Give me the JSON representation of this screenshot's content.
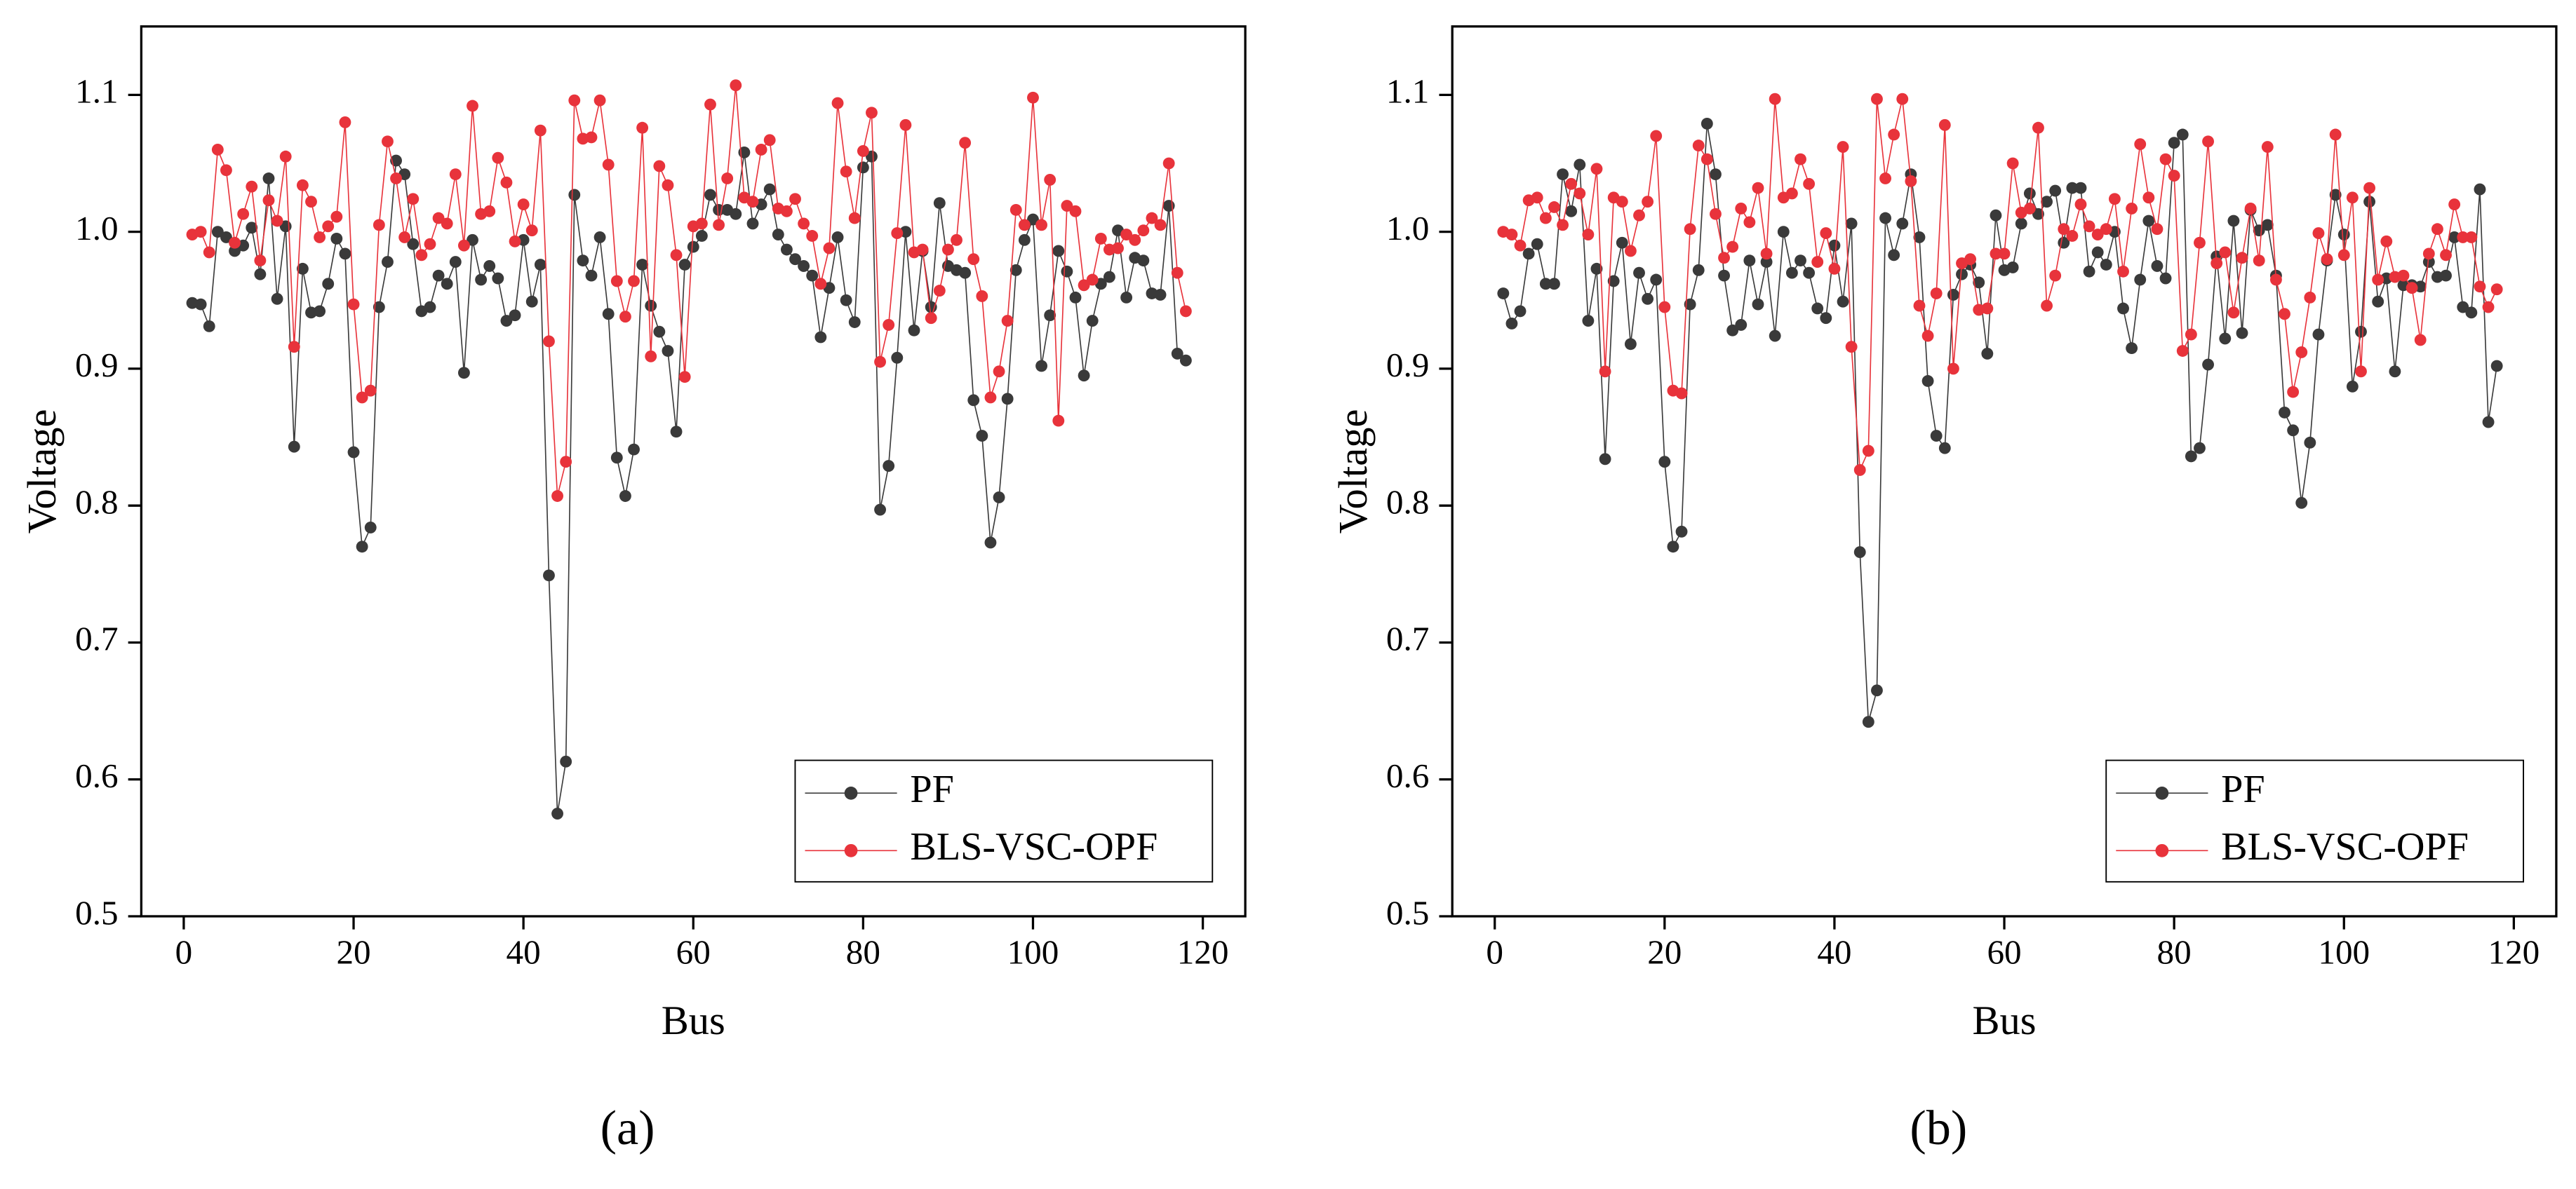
{
  "chart_data": [
    {
      "type": "line",
      "label": "(a)",
      "xlabel": "Bus",
      "ylabel": "Voltage",
      "xlim": [
        -5,
        125
      ],
      "xticks": [
        0,
        20,
        40,
        60,
        80,
        100,
        120
      ],
      "ylim": [
        0.5,
        1.15
      ],
      "yticks": [
        0.5,
        0.6,
        0.7,
        0.8,
        0.9,
        {
          "value": 1.0,
          "label": "1.0"
        },
        1.1
      ],
      "legend": "lower right",
      "x": [
        1,
        2,
        3,
        4,
        5,
        6,
        7,
        8,
        9,
        10,
        11,
        12,
        13,
        14,
        15,
        16,
        17,
        18,
        19,
        20,
        21,
        22,
        23,
        24,
        25,
        26,
        27,
        28,
        29,
        30,
        31,
        32,
        33,
        34,
        35,
        36,
        37,
        38,
        39,
        40,
        41,
        42,
        43,
        44,
        45,
        46,
        47,
        48,
        49,
        50,
        51,
        52,
        53,
        54,
        55,
        56,
        57,
        58,
        59,
        60,
        61,
        62,
        63,
        64,
        65,
        66,
        67,
        68,
        69,
        70,
        71,
        72,
        73,
        74,
        75,
        76,
        77,
        78,
        79,
        80,
        81,
        82,
        83,
        84,
        85,
        86,
        87,
        88,
        89,
        90,
        91,
        92,
        93,
        94,
        95,
        96,
        97,
        98,
        99,
        100,
        101,
        102,
        103,
        104,
        105,
        106,
        107,
        108,
        109,
        110,
        111,
        112,
        113,
        114,
        115,
        116,
        117,
        118
      ],
      "series": [
        {
          "name": "PF",
          "color": "#3a3a3a",
          "values": [
            0.948,
            0.947,
            0.931,
            1.0,
            0.996,
            0.986,
            0.99,
            1.003,
            0.969,
            1.039,
            0.951,
            1.004,
            0.843,
            0.973,
            0.941,
            0.942,
            0.962,
            0.995,
            0.984,
            0.839,
            0.77,
            0.784,
            0.945,
            0.978,
            1.052,
            1.042,
            0.991,
            0.942,
            0.945,
            0.968,
            0.962,
            0.978,
            0.897,
            0.994,
            0.965,
            0.975,
            0.966,
            0.935,
            0.939,
            0.994,
            0.949,
            0.976,
            0.749,
            0.575,
            0.613,
            1.027,
            0.979,
            0.968,
            0.996,
            0.94,
            0.835,
            0.807,
            0.841,
            0.976,
            0.946,
            0.927,
            0.913,
            0.854,
            0.976,
            0.989,
            0.997,
            1.027,
            1.016,
            1.016,
            1.013,
            1.058,
            1.006,
            1.02,
            1.031,
            0.998,
            0.987,
            0.98,
            0.975,
            0.968,
            0.923,
            0.959,
            0.996,
            0.95,
            0.934,
            1.047,
            1.055,
            0.797,
            0.829,
            0.908,
            1.0,
            0.928,
            0.986,
            0.945,
            1.021,
            0.975,
            0.972,
            0.97,
            0.877,
            0.851,
            0.773,
            0.806,
            0.878,
            0.972,
            0.994,
            1.009,
            0.902,
            0.939,
            0.986,
            0.971,
            0.952,
            0.895,
            0.935,
            0.962,
            0.967,
            1.001,
            0.952,
            0.981,
            0.979,
            0.955,
            0.954,
            1.019,
            0.911,
            0.906
          ]
        },
        {
          "name": "BLS-VSC-OPF",
          "color": "#e8333b",
          "values": [
            0.998,
            1.0,
            0.985,
            1.06,
            1.045,
            0.992,
            1.013,
            1.033,
            0.979,
            1.023,
            1.008,
            1.055,
            0.916,
            1.034,
            1.022,
            0.996,
            1.004,
            1.011,
            1.08,
            0.947,
            0.879,
            0.884,
            1.005,
            1.066,
            1.039,
            0.996,
            1.024,
            0.983,
            0.991,
            1.01,
            1.006,
            1.042,
            0.99,
            1.092,
            1.013,
            1.015,
            1.054,
            1.036,
            0.993,
            1.02,
            1.001,
            1.074,
            0.92,
            0.807,
            0.832,
            1.096,
            1.068,
            1.069,
            1.096,
            1.049,
            0.964,
            0.938,
            0.964,
            1.076,
            0.909,
            1.048,
            1.034,
            0.983,
            0.894,
            1.004,
            1.006,
            1.093,
            1.005,
            1.039,
            1.107,
            1.025,
            1.022,
            1.06,
            1.067,
            1.017,
            1.015,
            1.024,
            1.006,
            0.997,
            0.962,
            0.988,
            1.094,
            1.044,
            1.01,
            1.059,
            1.087,
            0.905,
            0.932,
            0.999,
            1.078,
            0.985,
            0.987,
            0.937,
            0.957,
            0.987,
            0.994,
            1.065,
            0.98,
            0.953,
            0.879,
            0.898,
            0.935,
            1.016,
            1.005,
            1.098,
            1.005,
            1.038,
            0.862,
            1.019,
            1.015,
            0.961,
            0.965,
            0.995,
            0.987,
            0.988,
            0.998,
            0.994,
            1.001,
            1.01,
            1.005,
            1.05,
            0.97,
            0.942
          ]
        }
      ]
    },
    {
      "type": "line",
      "label": "(b)",
      "xlabel": "Bus",
      "ylabel": "Voltage",
      "xlim": [
        -5,
        125
      ],
      "xticks": [
        0,
        20,
        40,
        60,
        80,
        100,
        120
      ],
      "ylim": [
        0.5,
        1.15
      ],
      "yticks": [
        0.5,
        0.6,
        0.7,
        0.8,
        0.9,
        {
          "value": 1.0,
          "label": "1.0"
        },
        1.1
      ],
      "legend": "lower right",
      "x": [
        1,
        2,
        3,
        4,
        5,
        6,
        7,
        8,
        9,
        10,
        11,
        12,
        13,
        14,
        15,
        16,
        17,
        18,
        19,
        20,
        21,
        22,
        23,
        24,
        25,
        26,
        27,
        28,
        29,
        30,
        31,
        32,
        33,
        34,
        35,
        36,
        37,
        38,
        39,
        40,
        41,
        42,
        43,
        44,
        45,
        46,
        47,
        48,
        49,
        50,
        51,
        52,
        53,
        54,
        55,
        56,
        57,
        58,
        59,
        60,
        61,
        62,
        63,
        64,
        65,
        66,
        67,
        68,
        69,
        70,
        71,
        72,
        73,
        74,
        75,
        76,
        77,
        78,
        79,
        80,
        81,
        82,
        83,
        84,
        85,
        86,
        87,
        88,
        89,
        90,
        91,
        92,
        93,
        94,
        95,
        96,
        97,
        98,
        99,
        100,
        101,
        102,
        103,
        104,
        105,
        106,
        107,
        108,
        109,
        110,
        111,
        112,
        113,
        114,
        115,
        116,
        117,
        118
      ],
      "series": [
        {
          "name": "PF",
          "color": "#3a3a3a",
          "values": [
            0.955,
            0.933,
            0.942,
            0.984,
            0.991,
            0.962,
            0.962,
            1.042,
            1.015,
            1.049,
            0.935,
            0.973,
            0.834,
            0.964,
            0.992,
            0.918,
            0.97,
            0.951,
            0.965,
            0.832,
            0.77,
            0.781,
            0.947,
            0.972,
            1.079,
            1.042,
            0.968,
            0.928,
            0.932,
            0.979,
            0.947,
            0.978,
            0.924,
            1.0,
            0.97,
            0.979,
            0.97,
            0.944,
            0.937,
            0.99,
            0.949,
            1.006,
            0.766,
            0.642,
            0.665,
            1.01,
            0.983,
            1.006,
            1.042,
            0.996,
            0.891,
            0.851,
            0.842,
            0.954,
            0.969,
            0.976,
            0.963,
            0.911,
            1.012,
            0.972,
            0.974,
            1.006,
            1.028,
            1.013,
            1.022,
            1.03,
            0.992,
            1.032,
            1.032,
            0.971,
            0.985,
            0.976,
            1.0,
            0.944,
            0.915,
            0.965,
            1.008,
            0.975,
            0.966,
            1.065,
            1.071,
            0.836,
            0.842,
            0.903,
            0.982,
            0.922,
            1.008,
            0.926,
            1.016,
            1.001,
            1.005,
            0.968,
            0.868,
            0.855,
            0.802,
            0.846,
            0.925,
            0.979,
            1.027,
            0.998,
            0.887,
            0.927,
            1.022,
            0.949,
            0.966,
            0.898,
            0.961,
            0.961,
            0.96,
            0.978,
            0.967,
            0.968,
            0.996,
            0.945,
            0.941,
            1.031,
            0.861,
            0.902
          ]
        },
        {
          "name": "BLS-VSC-OPF",
          "color": "#e8333b",
          "values": [
            1.0,
            0.998,
            0.99,
            1.023,
            1.025,
            1.01,
            1.018,
            1.005,
            1.035,
            1.028,
            0.998,
            1.046,
            0.898,
            1.025,
            1.022,
            0.986,
            1.012,
            1.022,
            1.07,
            0.945,
            0.884,
            0.882,
            1.002,
            1.063,
            1.053,
            1.013,
            0.981,
            0.989,
            1.017,
            1.007,
            1.032,
            0.984,
            1.097,
            1.025,
            1.028,
            1.053,
            1.035,
            0.978,
            0.999,
            0.973,
            1.062,
            0.916,
            0.826,
            0.84,
            1.097,
            1.039,
            1.071,
            1.097,
            1.037,
            0.946,
            0.924,
            0.955,
            1.078,
            0.9,
            0.977,
            0.98,
            0.943,
            0.944,
            0.984,
            0.984,
            1.05,
            1.014,
            1.017,
            1.076,
            0.946,
            0.968,
            1.002,
            0.997,
            1.02,
            1.004,
            0.998,
            1.002,
            1.024,
            0.971,
            1.017,
            1.064,
            1.025,
            1.002,
            1.053,
            1.041,
            0.913,
            0.925,
            0.992,
            1.066,
            0.977,
            0.985,
            0.941,
            0.981,
            1.017,
            0.979,
            1.062,
            0.965,
            0.94,
            0.883,
            0.912,
            0.952,
            0.999,
            0.98,
            1.071,
            0.983,
            1.025,
            0.898,
            1.032,
            0.965,
            0.993,
            0.967,
            0.968,
            0.959,
            0.921,
            0.984,
            1.002,
            0.983,
            1.02,
            0.996,
            0.996,
            0.96,
            0.945,
            0.958
          ]
        }
      ]
    }
  ]
}
